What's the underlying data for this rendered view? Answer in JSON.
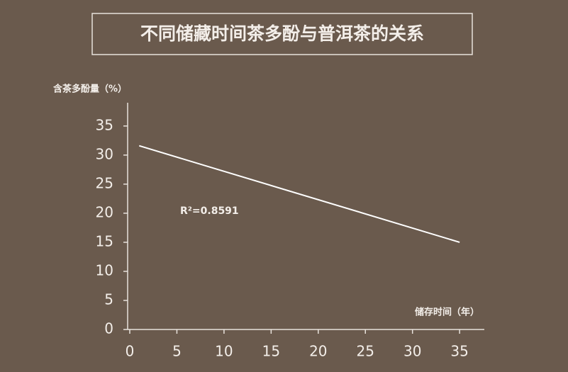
{
  "chart_data": {
    "type": "line",
    "title": "不同储藏时间茶多酚与普洱茶的关系",
    "y_label": "含茶多酚量（%）",
    "x_label": "储存时间（年）",
    "annotation": "R²=0.8591",
    "x": [
      1,
      35
    ],
    "series": [
      {
        "color": "#ffffff",
        "values": [
          31.6,
          15
        ]
      }
    ],
    "xlim": [
      0,
      37.6
    ],
    "xticks": [
      0,
      5,
      10,
      15,
      20,
      25,
      30,
      35
    ],
    "ylim": [
      0,
      39
    ],
    "yticks": [
      0,
      5,
      10,
      15,
      20,
      25,
      30,
      35
    ],
    "grid": false
  }
}
